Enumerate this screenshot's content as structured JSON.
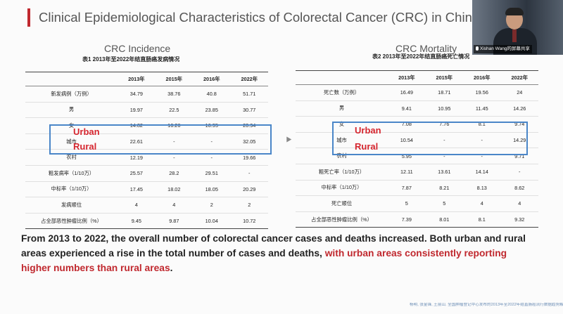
{
  "slide": {
    "title": "Clinical Epidemiological Characteristics of Colorectal Cancer (CRC) in Chin",
    "accent_color": "#c0282e"
  },
  "webcam": {
    "name": "Xishan Wang的屏幕共享"
  },
  "left": {
    "subtitle": "CRC Incidence",
    "caption": "表1 2013年至2022年结直肠癌发病情况",
    "headers": [
      "",
      "2013年",
      "2015年",
      "2016年",
      "2022年"
    ],
    "rows": [
      [
        "新发病例（万例）",
        "34.79",
        "38.76",
        "40.8",
        "51.71"
      ],
      [
        "男",
        "19.97",
        "22.5",
        "23.85",
        "30.77"
      ],
      [
        "女",
        "14.82",
        "16.26",
        "16.95",
        "20.94"
      ],
      [
        "城市",
        "22.61",
        "-",
        "-",
        "32.05"
      ],
      [
        "农村",
        "12.19",
        "-",
        "-",
        "19.66"
      ],
      [
        "粗发病率（1/10万）",
        "25.57",
        "28.2",
        "29.51",
        "-"
      ],
      [
        "中标率（1/10万）",
        "17.45",
        "18.02",
        "18.05",
        "20.29"
      ],
      [
        "发病顺位",
        "4",
        "4",
        "2",
        "2"
      ],
      [
        "占全部恶性肿瘤比例（%）",
        "9.45",
        "9.87",
        "10.04",
        "10.72"
      ]
    ],
    "urban_label": "Urban",
    "rural_label": "Rural"
  },
  "right": {
    "subtitle": "CRC Mortality",
    "caption": "表2 2013年至2022年结直肠癌死亡情况",
    "headers": [
      "",
      "2013年",
      "2015年",
      "2016年",
      "2022年"
    ],
    "rows": [
      [
        "死亡数（万例）",
        "16.49",
        "18.71",
        "19.56",
        "24"
      ],
      [
        "男",
        "9.41",
        "10.95",
        "11.45",
        "14.26"
      ],
      [
        "女",
        "7.08",
        "7.76",
        "8.1",
        "9.74"
      ],
      [
        "城市",
        "10.54",
        "-",
        "-",
        "14.29"
      ],
      [
        "农村",
        "5.95",
        "-",
        "-",
        "9.71"
      ],
      [
        "粗死亡率（1/10万）",
        "12.11",
        "13.61",
        "14.14",
        "-"
      ],
      [
        "中标率（1/10万）",
        "7.87",
        "8.21",
        "8.13",
        "8.62"
      ],
      [
        "死亡顺位",
        "5",
        "5",
        "4",
        "4"
      ],
      [
        "占全部恶性肿瘤比例（%）",
        "7.39",
        "8.01",
        "8.1",
        "9.32"
      ]
    ],
    "urban_label": "Urban",
    "rural_label": "Rural"
  },
  "summary": {
    "text_black": "From 2013 to 2022, the overall number of colorectal cancer cases and deaths increased. Both urban and rural areas experienced a rise in the total number of cases and deaths, ",
    "text_red": "with urban areas consistently reporting higher numbers than rural areas",
    "text_end": "."
  },
  "citation": "杨明, 张金锋, 王丽山. 全国肿瘤登记中心发布的2013年至2022年结直肠癌流行数据趋势解读[J/OL]. 中华结直肠疾病电子杂志, 2024, 13(03): 177-181."
}
